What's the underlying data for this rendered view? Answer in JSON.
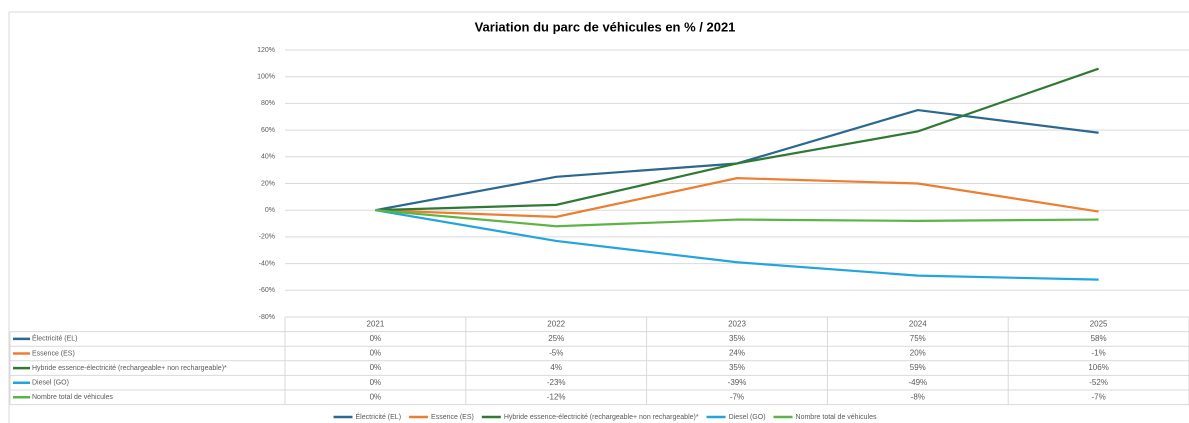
{
  "chart_data": {
    "type": "line",
    "title": "Variation du parc de véhicules en % / 2021",
    "categories": [
      "2021",
      "2022",
      "2023",
      "2024",
      "2025"
    ],
    "ylim": [
      -80,
      120
    ],
    "yticks": [
      {
        "value": -80,
        "label": "-80%"
      },
      {
        "value": -60,
        "label": "-60%"
      },
      {
        "value": -40,
        "label": "-40%"
      },
      {
        "value": -20,
        "label": "-20%"
      },
      {
        "value": 0,
        "label": "0%"
      },
      {
        "value": 20,
        "label": "20%"
      },
      {
        "value": 40,
        "label": "40%"
      },
      {
        "value": 60,
        "label": "60%"
      },
      {
        "value": 80,
        "label": "80%"
      },
      {
        "value": 100,
        "label": "100%"
      },
      {
        "value": 120,
        "label": "120%"
      }
    ],
    "grid": true,
    "legend": "bottom",
    "series": [
      {
        "name": "Électricité (EL)",
        "color": "#2a6890",
        "values": [
          0,
          25,
          35,
          75,
          58
        ],
        "value_labels": [
          "0%",
          "25%",
          "35%",
          "75%",
          "58%"
        ]
      },
      {
        "name": "Essence (ES)",
        "color": "#ed7d31",
        "values": [
          0,
          -5,
          24,
          20,
          -1
        ],
        "value_labels": [
          "0%",
          "-5%",
          "24%",
          "20%",
          "-1%"
        ]
      },
      {
        "name": "Hybride essence-électricité (rechargeable+ non rechargeable)*",
        "color": "#2f7a32",
        "values": [
          0,
          4,
          35,
          59,
          106
        ],
        "value_labels": [
          "0%",
          "4%",
          "35%",
          "59%",
          "106%"
        ]
      },
      {
        "name": "Diesel (GO)",
        "color": "#22a5de",
        "values": [
          0,
          -23,
          -39,
          -49,
          -52
        ],
        "value_labels": [
          "0%",
          "-23%",
          "-39%",
          "-49%",
          "-52%"
        ]
      },
      {
        "name": "Nombre total de véhicules",
        "color": "#5bb544",
        "values": [
          0,
          -12,
          -7,
          -8,
          -7
        ],
        "value_labels": [
          "0%",
          "-12%",
          "-7%",
          "-8%",
          "-7%"
        ]
      }
    ]
  }
}
